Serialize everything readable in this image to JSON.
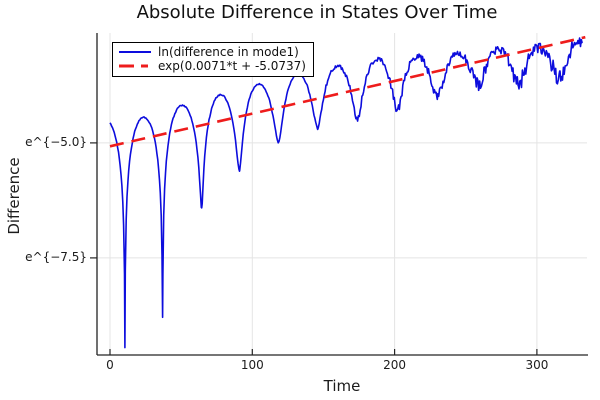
{
  "chart_data": {
    "type": "line",
    "title": "Absolute Difference in States Over Time",
    "xlabel": "Time",
    "ylabel": "Difference",
    "y_scale": "log-natural",
    "grid": true,
    "legend_position": "top-left",
    "xlim": [
      -9.1,
      335.2
    ],
    "ylim_ln": [
      -9.61,
      -2.61
    ],
    "x_ticks": [
      {
        "value": 0,
        "label": "0"
      },
      {
        "value": 100,
        "label": "100"
      },
      {
        "value": 200,
        "label": "200"
      },
      {
        "value": 300,
        "label": "300"
      }
    ],
    "y_ticks": [
      {
        "ln": -5.0,
        "label": "e^{−5.0}"
      },
      {
        "ln": -7.5,
        "label": "e^{−7.5}"
      }
    ],
    "series": [
      {
        "name": "ln(difference in mode1)",
        "color": "#0d0ddd",
        "style": "solid",
        "width": 1.6,
        "t_start": 0,
        "t_end": 332,
        "start_ln": -4.57,
        "period": 27.5,
        "zero_crossings_t": [
          10.5,
          37,
          64.5,
          91,
          118.5,
          146,
          174,
          202,
          230,
          259,
          287,
          316
        ],
        "dip_ln": [
          -9.43,
          -8.8,
          -6.42,
          -5.57,
          -4.96,
          -4.65,
          -4.43,
          -4.22,
          -3.95,
          -3.63,
          -3.6,
          -3.5
        ],
        "hump_peaks_t": [
          0,
          24,
          51,
          78,
          105,
          132,
          160,
          188,
          216,
          244.5,
          273,
          301.5,
          330
        ],
        "hump_peaks_ln": [
          -4.5,
          -4.44,
          -4.18,
          -3.95,
          -3.72,
          -3.5,
          -3.33,
          -3.18,
          -3.12,
          -3.03,
          -2.95,
          -2.93,
          -2.8
        ],
        "noise": {
          "base": 0.012,
          "growth_per_t": 0.0006,
          "onset_t": 125,
          "dip_boost": 0.8
        }
      },
      {
        "name": "exp(0.0071*t + -5.0737)",
        "color": "#ee1c1c",
        "style": "dashed",
        "width": 2.6,
        "slope": 0.0071,
        "intercept": -5.0737,
        "t_range": [
          0,
          334
        ]
      }
    ],
    "colors": {
      "background": "#ffffff",
      "grid": "#e4e4e4",
      "spine": "#242424",
      "tick": "#242424",
      "text": "#1c1c1c"
    }
  }
}
